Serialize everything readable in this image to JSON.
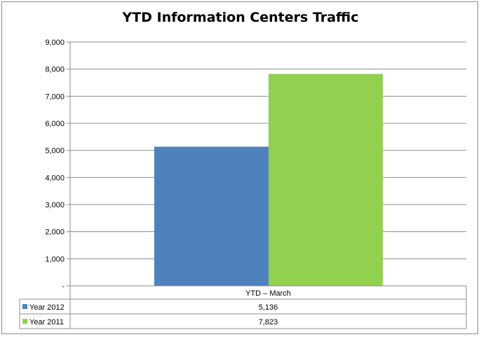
{
  "chart_data": {
    "type": "bar",
    "title": "YTD Information Centers Traffic",
    "categories": [
      "YTD – March"
    ],
    "series": [
      {
        "name": "Year 2012",
        "values": [
          5136
        ],
        "value_labels": [
          "5,136"
        ],
        "color": "#4f81bd"
      },
      {
        "name": "Year 2011",
        "values": [
          7823
        ],
        "value_labels": [
          "7,823"
        ],
        "color": "#92d050"
      }
    ],
    "ylim": [
      0,
      9000
    ],
    "yticks": [
      0,
      1000,
      2000,
      3000,
      4000,
      5000,
      6000,
      7000,
      8000,
      9000
    ],
    "ytick_labels": [
      "-",
      "1,000",
      "2,000",
      "3,000",
      "4,000",
      "5,000",
      "6,000",
      "7,000",
      "8,000",
      "9,000"
    ],
    "grid": true,
    "legend": "data-table"
  }
}
